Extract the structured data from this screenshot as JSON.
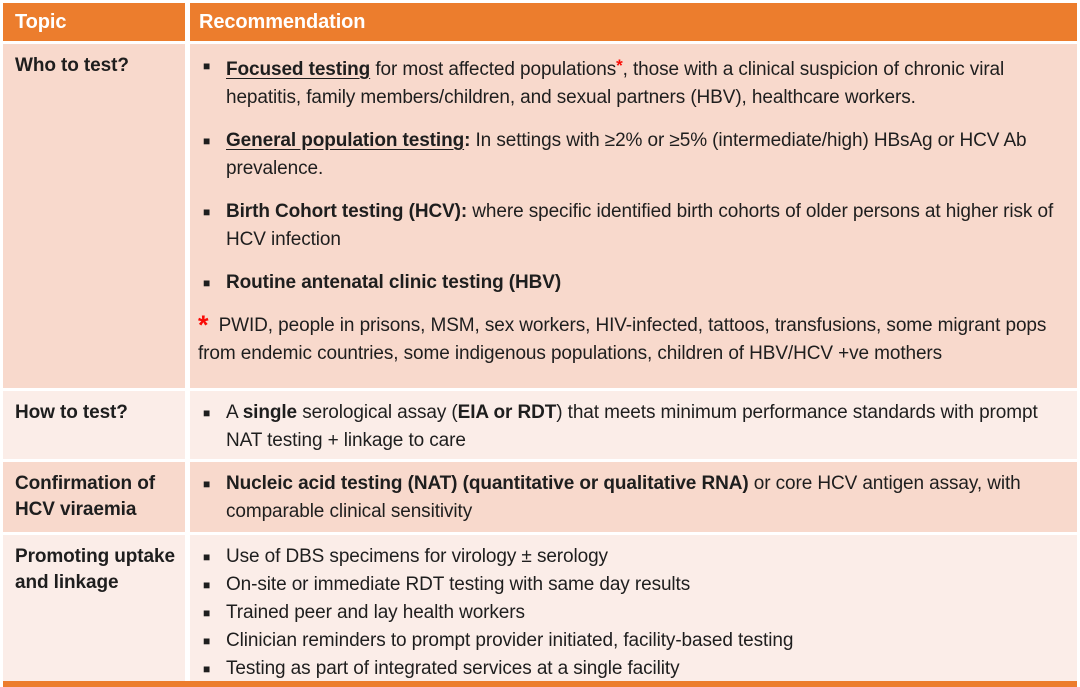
{
  "table": {
    "colors": {
      "accent": "#EC7D2D",
      "band_dark": "#F8D9CC",
      "band_light": "#FBEDE8",
      "divider": "#FFFFFF",
      "header_text": "#FFFFFF",
      "body_text": "#1E1E1E",
      "asterisk_red": "#F90B06"
    },
    "bullet_glyph": "■",
    "header": {
      "topic": "Topic",
      "recommendation": "Recommendation"
    },
    "rows": [
      {
        "topic": "Who to test?",
        "band": "band_dark",
        "items": [
          {
            "type": "bullet",
            "spaced": true,
            "runs": [
              {
                "t": "Focused testing",
                "b": true,
                "u": true
              },
              {
                "t": " for most affected populations"
              },
              {
                "t": "*",
                "sup": true,
                "red": true
              },
              {
                "t": ", those with a clinical suspicion of chronic viral hepatitis, family members/children, and sexual partners (HBV), healthcare workers."
              }
            ]
          },
          {
            "type": "bullet",
            "spaced": true,
            "runs": [
              {
                "t": "General population testing",
                "b": true,
                "u": true
              },
              {
                "t": ":",
                "b": true
              },
              {
                "t": " In settings with ≥2% or ≥5% (intermediate/high) HBsAg or HCV Ab prevalence."
              }
            ]
          },
          {
            "type": "bullet",
            "spaced": true,
            "runs": [
              {
                "t": "Birth Cohort testing (HCV):",
                "b": true
              },
              {
                "t": " where specific identified birth cohorts of older persons at higher risk of HCV infection"
              }
            ]
          },
          {
            "type": "bullet",
            "spaced": true,
            "runs": [
              {
                "t": "Routine antenatal clinic testing (HBV)",
                "b": true
              }
            ]
          },
          {
            "type": "note",
            "runs": [
              {
                "t": "*",
                "red": true,
                "big": true
              },
              {
                "t": " PWID, people in prisons, MSM, sex workers, HIV-infected, tattoos, transfusions, some migrant pops from endemic countries, some indigenous populations, children of HBV/HCV +ve mothers"
              }
            ]
          }
        ]
      },
      {
        "topic": "How to test?",
        "band": "band_light",
        "items": [
          {
            "type": "bullet",
            "runs": [
              {
                "t": "A "
              },
              {
                "t": "single",
                "b": true
              },
              {
                "t": " serological assay ("
              },
              {
                "t": "EIA or RDT",
                "b": true
              },
              {
                "t": ") that meets minimum performance standards with prompt NAT testing + linkage to care"
              }
            ]
          }
        ]
      },
      {
        "topic": "Confirmation of HCV viraemia",
        "band": "band_dark",
        "items": [
          {
            "type": "bullet",
            "runs": [
              {
                "t": "Nucleic acid testing (NAT) (quantitative or qualitative RNA)",
                "b": true
              },
              {
                "t": " or core HCV antigen assay, with comparable clinical sensitivity"
              }
            ]
          }
        ]
      },
      {
        "topic": "Promoting uptake and linkage",
        "band": "band_light",
        "items": [
          {
            "type": "bullet",
            "runs": [
              {
                "t": "Use of DBS specimens for virology ± serology"
              }
            ]
          },
          {
            "type": "bullet",
            "runs": [
              {
                "t": "On-site or immediate RDT testing with same day results"
              }
            ]
          },
          {
            "type": "bullet",
            "runs": [
              {
                "t": "Trained peer and lay health workers"
              }
            ]
          },
          {
            "type": "bullet",
            "runs": [
              {
                "t": "Clinician reminders to prompt provider initiated, facility-based testing"
              }
            ]
          },
          {
            "type": "bullet",
            "runs": [
              {
                "t": "Testing as part of integrated services at a single facility"
              }
            ]
          }
        ]
      }
    ]
  }
}
